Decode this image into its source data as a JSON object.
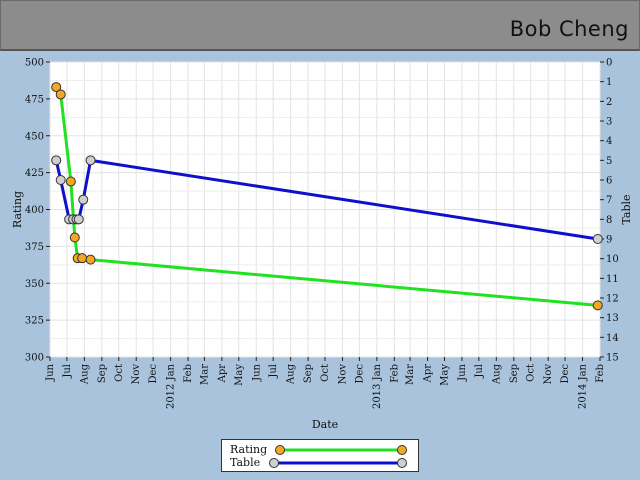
{
  "header": {
    "user_name": "Bob Cheng"
  },
  "colors": {
    "rating_line": "#22e022",
    "rating_marker": "#f5a623",
    "table_line": "#1010cc",
    "table_marker": "#cfcfcf",
    "plot_bg": "#ffffff",
    "grid": "#e3e3e3"
  },
  "chart_data": {
    "type": "line",
    "xlabel": "Date",
    "ylabel": "Rating",
    "y2label": "Table",
    "ylim": [
      300,
      500
    ],
    "y2lim": [
      0,
      15
    ],
    "y2_inverted": true,
    "grid": true,
    "legend_position": "bottom-center",
    "x_tick_labels": [
      "Jun",
      "Jul",
      "Aug",
      "Sep",
      "Oct",
      "Nov",
      "Dec",
      "2012 Jan",
      "Feb",
      "Mar",
      "Apr",
      "May",
      "Jun",
      "Jul",
      "Aug",
      "Sep",
      "Oct",
      "Nov",
      "Dec",
      "2013 Jan",
      "Feb",
      "Mar",
      "Apr",
      "May",
      "Jun",
      "Jul",
      "Aug",
      "Sep",
      "Oct",
      "Nov",
      "Dec",
      "2014 Jan",
      "Feb"
    ],
    "y_ticks": [
      300,
      325,
      350,
      375,
      400,
      425,
      450,
      475,
      500
    ],
    "y2_ticks": [
      0,
      1,
      2,
      3,
      4,
      5,
      6,
      7,
      8,
      9,
      10,
      11,
      12,
      13,
      14,
      15
    ],
    "series": [
      {
        "name": "Rating",
        "axis": "left",
        "x": [
          "2011-06-12",
          "2011-06-20",
          "2011-07-08",
          "2011-07-15",
          "2011-07-20",
          "2011-07-28",
          "2011-08-12",
          "2014-01-28"
        ],
        "values": [
          483,
          478,
          419,
          381,
          367,
          367,
          366,
          335
        ]
      },
      {
        "name": "Table",
        "axis": "right",
        "x": [
          "2011-06-12",
          "2011-06-20",
          "2011-07-05",
          "2011-07-12",
          "2011-07-18",
          "2011-07-22",
          "2011-07-30",
          "2011-08-12",
          "2014-01-28"
        ],
        "values": [
          5,
          6,
          8,
          8,
          8,
          8,
          7,
          5,
          9
        ]
      }
    ]
  }
}
